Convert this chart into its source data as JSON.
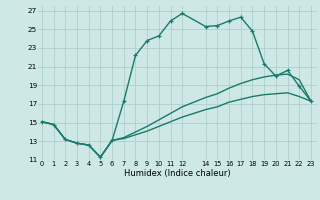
{
  "xlabel": "Humidex (Indice chaleur)",
  "background_color": "#cde8e5",
  "grid_color": "#afd0cd",
  "line_color": "#1a7a6e",
  "xlim": [
    -0.3,
    23.5
  ],
  "ylim": [
    11,
    27.5
  ],
  "xtick_vals": [
    0,
    1,
    2,
    3,
    4,
    5,
    6,
    7,
    8,
    9,
    10,
    11,
    12,
    14,
    15,
    16,
    17,
    18,
    19,
    20,
    21,
    22,
    23
  ],
  "xtick_labels": [
    "0",
    "1",
    "2",
    "3",
    "4",
    "5",
    "6",
    "7",
    "8",
    "9",
    "10",
    "11",
    "12",
    "14",
    "15",
    "16",
    "17",
    "18",
    "19",
    "20",
    "21",
    "22",
    "23"
  ],
  "ytick_vals": [
    11,
    13,
    15,
    17,
    19,
    21,
    23,
    25,
    27
  ],
  "ytick_labels": [
    "11",
    "13",
    "15",
    "17",
    "19",
    "21",
    "23",
    "25",
    "27"
  ],
  "series1_x": [
    0,
    1,
    2,
    3,
    4,
    5,
    6,
    7,
    8,
    9,
    10,
    11,
    12,
    14,
    15,
    16,
    17,
    18,
    19,
    20,
    21,
    22,
    23
  ],
  "series1_y": [
    15.1,
    14.8,
    13.2,
    12.8,
    12.6,
    11.3,
    13.1,
    17.3,
    22.2,
    23.8,
    24.3,
    25.9,
    26.7,
    25.3,
    25.4,
    25.9,
    26.3,
    24.8,
    21.3,
    20.0,
    20.6,
    18.9,
    17.3
  ],
  "series2_x": [
    0,
    1,
    2,
    3,
    4,
    5,
    6,
    7,
    8,
    9,
    10,
    11,
    12,
    14,
    15,
    16,
    17,
    18,
    19,
    20,
    21,
    22,
    23
  ],
  "series2_y": [
    15.1,
    14.8,
    13.2,
    12.8,
    12.6,
    11.3,
    13.1,
    13.4,
    14.0,
    14.6,
    15.3,
    16.0,
    16.7,
    17.7,
    18.1,
    18.7,
    19.2,
    19.6,
    19.9,
    20.1,
    20.2,
    19.6,
    17.3
  ],
  "series3_x": [
    0,
    1,
    2,
    3,
    4,
    5,
    6,
    7,
    8,
    9,
    10,
    11,
    12,
    14,
    15,
    16,
    17,
    18,
    19,
    20,
    21,
    22,
    23
  ],
  "series3_y": [
    15.1,
    14.8,
    13.2,
    12.8,
    12.6,
    11.3,
    13.1,
    13.3,
    13.7,
    14.1,
    14.6,
    15.1,
    15.6,
    16.4,
    16.7,
    17.2,
    17.5,
    17.8,
    18.0,
    18.1,
    18.2,
    17.8,
    17.3
  ]
}
